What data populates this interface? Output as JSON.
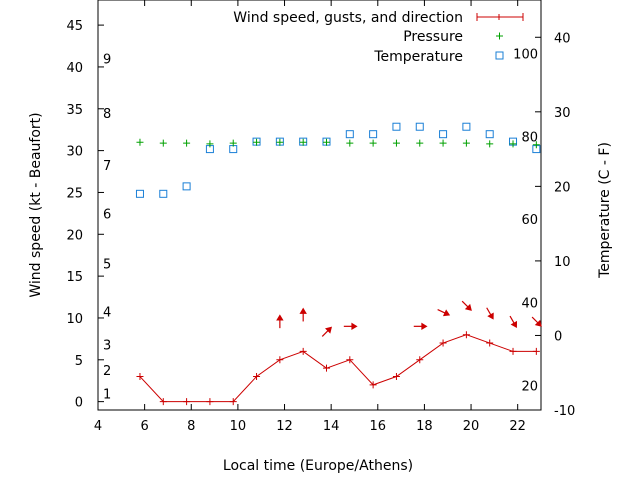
{
  "chart_data": {
    "type": "line",
    "xlabel": "Local time (Europe/Athens)",
    "ylabel": "Wind speed (kt - Beaufort)",
    "y2label": "Temperature (C - F)",
    "xlim": [
      4,
      23
    ],
    "ylim": [
      -1,
      48
    ],
    "y2lim": [
      -10,
      45
    ],
    "xticks": [
      4,
      6,
      8,
      10,
      12,
      14,
      16,
      18,
      20,
      22
    ],
    "yticks": [
      0,
      5,
      10,
      15,
      20,
      25,
      30,
      35,
      40,
      45
    ],
    "y2ticks": [
      -10,
      0,
      10,
      20,
      30,
      40
    ],
    "beaufort_labels": [
      {
        "label": "1",
        "kt": 1
      },
      {
        "label": "2",
        "kt": 3.8
      },
      {
        "label": "3",
        "kt": 6.8
      },
      {
        "label": "4",
        "kt": 10.8
      },
      {
        "label": "5",
        "kt": 16.5
      },
      {
        "label": "6",
        "kt": 22.5
      },
      {
        "label": "7",
        "kt": 28.3
      },
      {
        "label": "8",
        "kt": 34.5
      },
      {
        "label": "9",
        "kt": 41
      }
    ],
    "fahrenheit_labels": [
      {
        "label": "20",
        "c": -6.7
      },
      {
        "label": "40",
        "c": 4.4
      },
      {
        "label": "60",
        "c": 15.6
      },
      {
        "label": "80",
        "c": 26.7
      },
      {
        "label": "100",
        "c": 37.8
      }
    ],
    "legend": {
      "position": "top-right",
      "entries": [
        "Wind speed, gusts, and direction",
        "Pressure",
        "Temperature"
      ]
    },
    "colors": {
      "wind": "#cc0000",
      "pressure": "#00a000",
      "temperature": "#1a7fd6"
    },
    "series": [
      {
        "name": "Wind speed, gusts, and direction",
        "x": [
          5.8,
          6.8,
          7.8,
          8.8,
          9.8,
          10.8,
          11.8,
          12.8,
          13.8,
          14.8,
          15.8,
          16.8,
          17.8,
          18.8,
          19.8,
          20.8,
          21.8,
          22.8
        ],
        "y": [
          3,
          0,
          0,
          0,
          0,
          3,
          5,
          6,
          4,
          5,
          2,
          3,
          5,
          7,
          8,
          7,
          6,
          6
        ]
      },
      {
        "name": "Pressure",
        "x": [
          5.8,
          6.8,
          7.8,
          8.8,
          9.8,
          10.8,
          11.8,
          12.8,
          13.8,
          14.8,
          15.8,
          16.8,
          17.8,
          18.8,
          19.8,
          20.8,
          21.8,
          22.8
        ],
        "y": [
          31,
          30.9,
          30.9,
          30.8,
          30.9,
          31,
          31,
          31,
          31,
          30.9,
          30.9,
          30.9,
          30.9,
          30.9,
          30.9,
          30.8,
          30.8,
          30.7
        ]
      },
      {
        "name": "Temperature",
        "x": [
          5.8,
          6.8,
          7.8,
          8.8,
          9.8,
          10.8,
          11.8,
          12.8,
          13.8,
          14.8,
          15.8,
          16.8,
          17.8,
          18.8,
          19.8,
          20.8,
          21.8,
          22.8
        ],
        "y": [
          19,
          19,
          20,
          25,
          25,
          26,
          26,
          26,
          26,
          27,
          27,
          28,
          28,
          27,
          28,
          27,
          26,
          25
        ]
      }
    ],
    "wind_direction_arrows": [
      {
        "x": 11.8,
        "kt": 9.5,
        "deg": 180
      },
      {
        "x": 12.8,
        "kt": 10.3,
        "deg": 180
      },
      {
        "x": 13.8,
        "kt": 8.3,
        "deg": 225
      },
      {
        "x": 14.8,
        "kt": 9.0,
        "deg": 270
      },
      {
        "x": 17.8,
        "kt": 9.0,
        "deg": 270
      },
      {
        "x": 18.8,
        "kt": 10.7,
        "deg": 295
      },
      {
        "x": 19.8,
        "kt": 11.5,
        "deg": 315
      },
      {
        "x": 20.8,
        "kt": 10.6,
        "deg": 330
      },
      {
        "x": 21.8,
        "kt": 9.6,
        "deg": 330
      },
      {
        "x": 22.8,
        "kt": 9.6,
        "deg": 315
      }
    ]
  }
}
